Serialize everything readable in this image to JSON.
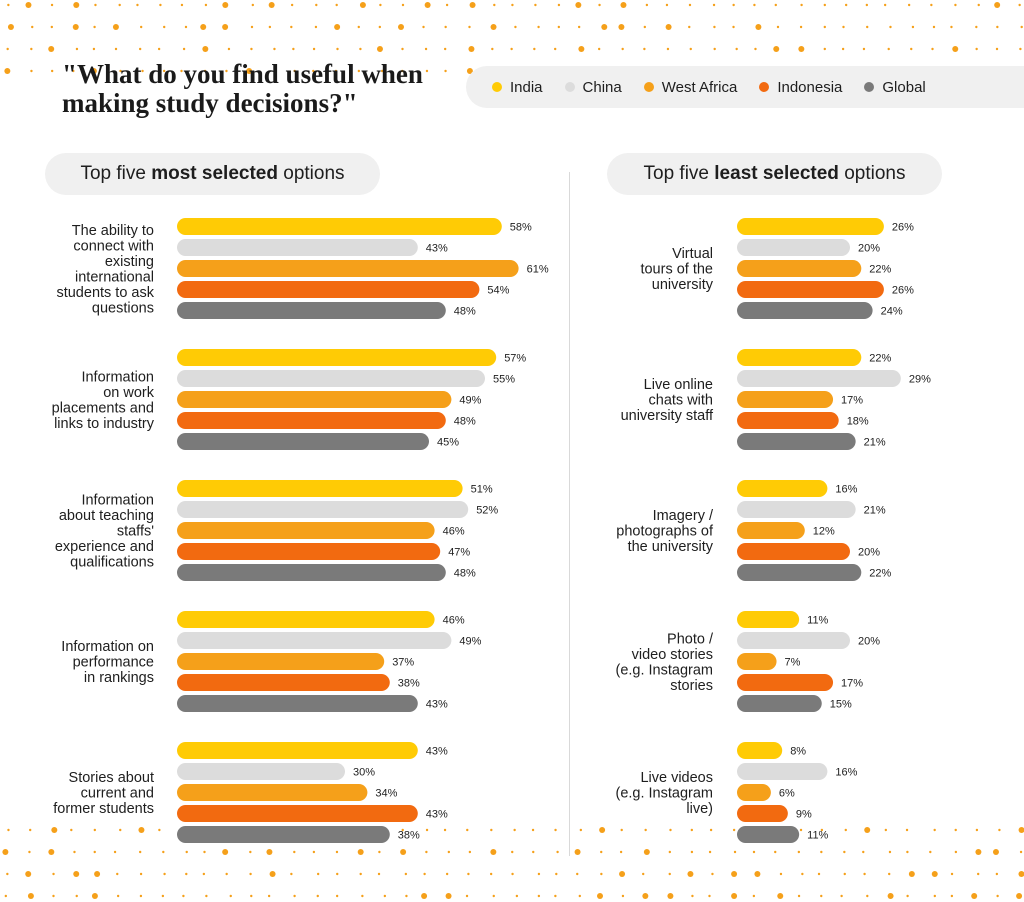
{
  "title": "\"What do you find useful when\nmaking study decisions?\"",
  "legend": [
    {
      "name": "India",
      "color": "#FFCB05"
    },
    {
      "name": "China",
      "color": "#DCDCDC"
    },
    {
      "name": "West Africa",
      "color": "#F5A01A"
    },
    {
      "name": "Indonesia",
      "color": "#F26A10"
    },
    {
      "name": "Global",
      "color": "#7A7A7A"
    }
  ],
  "panels": {
    "most": {
      "prefix": "Top five ",
      "bold": "most selected",
      "suffix": " options"
    },
    "least": {
      "prefix": "Top five ",
      "bold": "least selected",
      "suffix": " options"
    }
  },
  "chart_data": [
    {
      "type": "bar",
      "orientation": "horizontal",
      "series_names": [
        "India",
        "China",
        "West Africa",
        "Indonesia",
        "Global"
      ],
      "categories": [
        "The ability to connect with existing international students to ask questions",
        "Information on work placements and links to industry",
        "Information about teaching staffs' experience and qualifications",
        "Information on performance in rankings",
        "Stories about current and former students"
      ],
      "category_lines": [
        [
          "The ability to",
          "connect with",
          "existing",
          "international",
          "students to ask",
          "questions"
        ],
        [
          "Information",
          "on work",
          "placements and",
          "links to industry"
        ],
        [
          "Information",
          "about teaching",
          "staffs'",
          "experience and",
          "qualifications"
        ],
        [
          "Information on",
          "performance",
          "in rankings"
        ],
        [
          "Stories about",
          "current and",
          "former students"
        ]
      ],
      "values": [
        [
          58,
          43,
          61,
          54,
          48
        ],
        [
          57,
          55,
          49,
          48,
          45
        ],
        [
          51,
          52,
          46,
          47,
          48
        ],
        [
          46,
          49,
          37,
          38,
          43
        ],
        [
          43,
          30,
          34,
          43,
          38
        ]
      ],
      "labels": [
        [
          "58%",
          "43%",
          "61%",
          "54%",
          "48%"
        ],
        [
          "57%",
          "55%",
          "49%",
          "48%",
          "45%"
        ],
        [
          "51%",
          "52%",
          "46%",
          "47%",
          "48%"
        ],
        [
          "46%",
          "49%",
          "37%",
          "38%",
          "43%"
        ],
        [
          "43%",
          "30%",
          "34%",
          "43%",
          "38%"
        ]
      ],
      "unit": "%"
    },
    {
      "type": "bar",
      "orientation": "horizontal",
      "series_names": [
        "India",
        "China",
        "West Africa",
        "Indonesia",
        "Global"
      ],
      "categories": [
        "Virtual tours of the university",
        "Live online chats with university staff",
        "Imagery / photographs of the university",
        "Photo / video stories (e.g. Instagram stories",
        "Live videos (e.g. Instagram live)"
      ],
      "category_lines": [
        [
          "Virtual",
          "tours of the",
          "university"
        ],
        [
          "Live online",
          "chats with",
          "university staff"
        ],
        [
          "Imagery /",
          "photographs of",
          "the university"
        ],
        [
          "Photo /",
          "video stories",
          "(e.g. Instagram",
          "stories"
        ],
        [
          "Live videos",
          "(e.g. Instagram",
          "live)"
        ]
      ],
      "values": [
        [
          26,
          20,
          22,
          26,
          24
        ],
        [
          22,
          29,
          17,
          18,
          21
        ],
        [
          16,
          21,
          12,
          20,
          22
        ],
        [
          11,
          20,
          7,
          17,
          15
        ],
        [
          8,
          16,
          6,
          9,
          11
        ]
      ],
      "labels": [
        [
          "26%",
          "20%",
          "22%",
          "26%",
          "24%"
        ],
        [
          "22%",
          "29%",
          "17%",
          "18%",
          "21%"
        ],
        [
          "16%",
          "21%",
          "12%",
          "20%",
          "22%"
        ],
        [
          "11%",
          "20%",
          "7%",
          "17%",
          "15%"
        ],
        [
          "8%",
          "16%",
          "6%",
          "9%",
          "11%"
        ]
      ],
      "unit": "%"
    }
  ]
}
